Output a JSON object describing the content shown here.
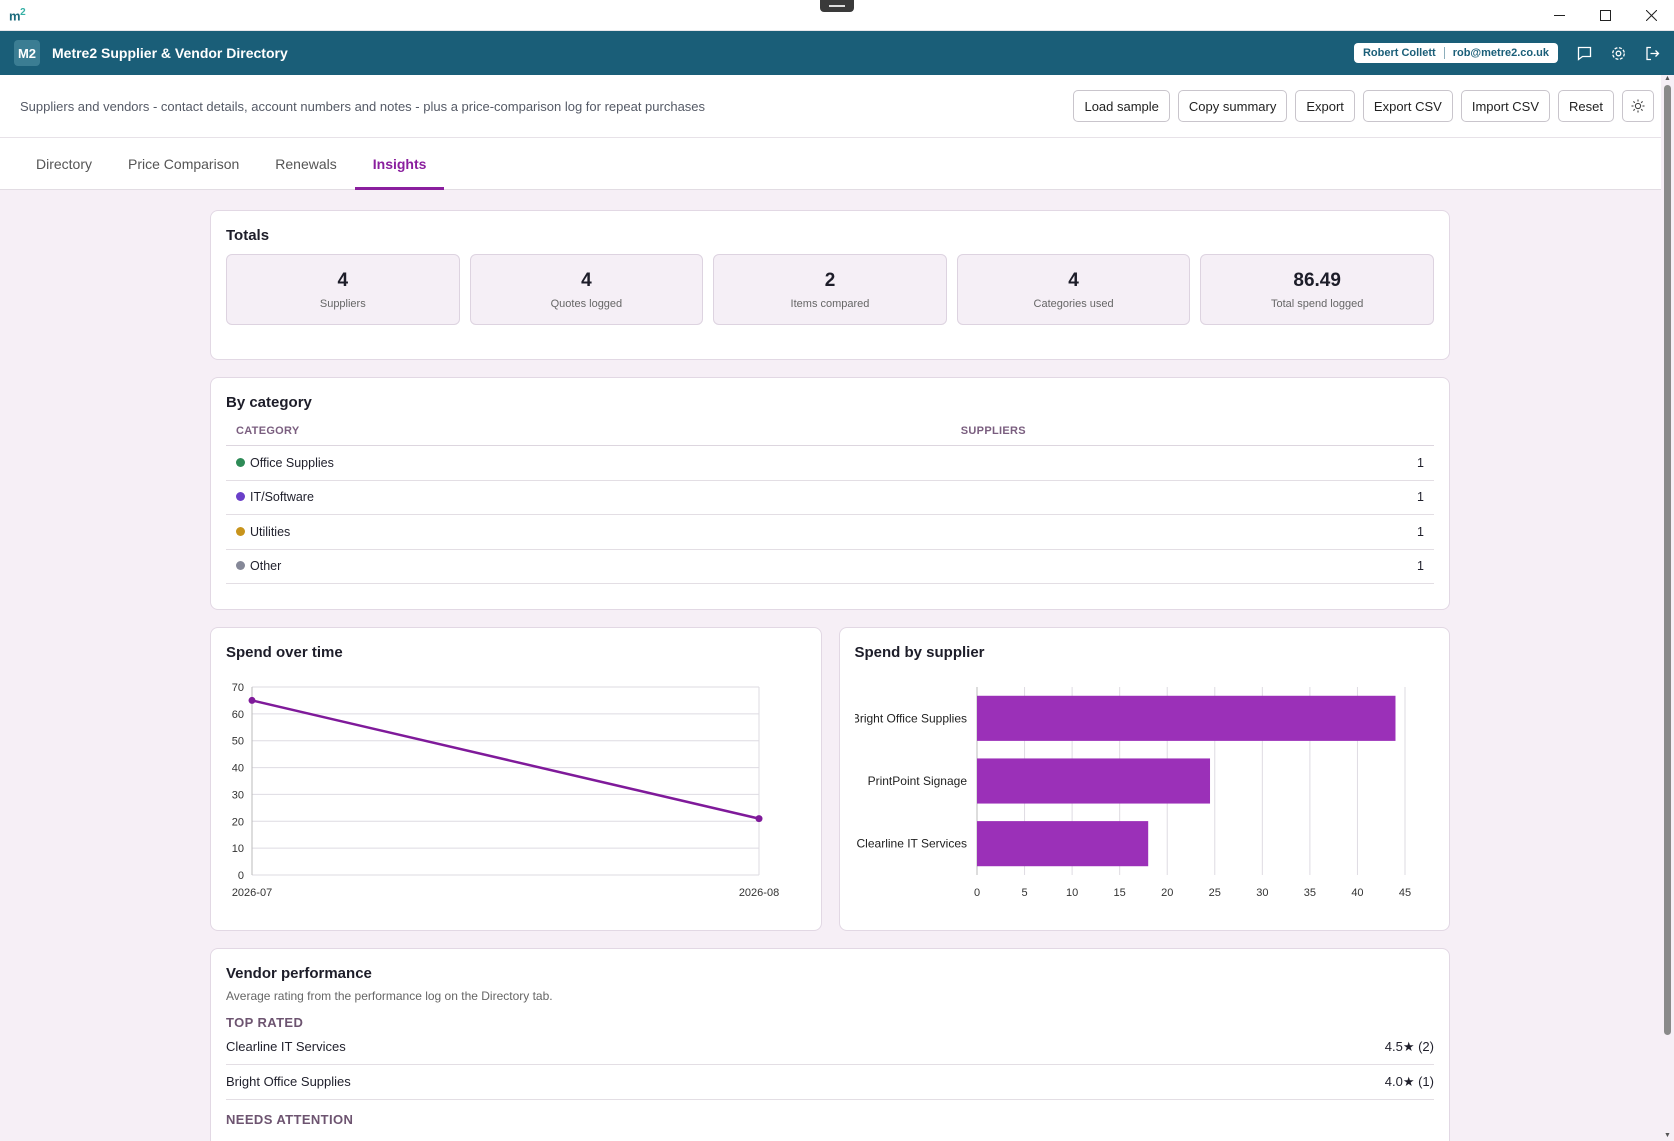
{
  "os": {
    "logo": "m2"
  },
  "header": {
    "logo": "M2",
    "title": "Metre2 Supplier & Vendor Directory",
    "user_name": "Robert Collett",
    "user_email": "rob@metre2.co.uk"
  },
  "subbar": {
    "description": "Suppliers and vendors - contact details, account numbers and notes - plus a price-comparison log for repeat purchases",
    "buttons": [
      "Load sample",
      "Copy summary",
      "Export",
      "Export CSV",
      "Import CSV",
      "Reset"
    ]
  },
  "tabs": [
    "Directory",
    "Price Comparison",
    "Renewals",
    "Insights"
  ],
  "active_tab": "Insights",
  "totals": {
    "title": "Totals",
    "stats": [
      {
        "value": "4",
        "label": "Suppliers"
      },
      {
        "value": "4",
        "label": "Quotes logged"
      },
      {
        "value": "2",
        "label": "Items compared"
      },
      {
        "value": "4",
        "label": "Categories used"
      },
      {
        "value": "86.49",
        "label": "Total spend logged"
      }
    ]
  },
  "by_category": {
    "title": "By category",
    "headers": [
      "CATEGORY",
      "SUPPLIERS"
    ],
    "rows": [
      {
        "name": "Office Supplies",
        "count": "1",
        "color": "#2e8b57"
      },
      {
        "name": "IT/Software",
        "count": "1",
        "color": "#6a3fc9"
      },
      {
        "name": "Utilities",
        "count": "1",
        "color": "#c8941c"
      },
      {
        "name": "Other",
        "count": "1",
        "color": "#858898"
      }
    ]
  },
  "spend_over_time": {
    "title": "Spend over time",
    "chart_data": {
      "type": "line",
      "x": [
        "2026-07",
        "2026-08"
      ],
      "series": [
        {
          "values": [
            65,
            21
          ]
        }
      ],
      "ylim": [
        0,
        70
      ],
      "yticks": [
        0,
        10,
        20,
        30,
        40,
        50,
        60,
        70
      ],
      "color": "#7f1a9a"
    }
  },
  "spend_by_supplier": {
    "title": "Spend by supplier",
    "chart_data": {
      "type": "bar",
      "orientation": "horizontal",
      "categories": [
        "Bright Office Supplies",
        "PrintPoint Signage",
        "Clearline IT Services"
      ],
      "values": [
        44,
        24.5,
        18
      ],
      "xlim": [
        0,
        45
      ],
      "xticks": [
        0,
        5,
        10,
        15,
        20,
        25,
        30,
        35,
        40,
        45
      ],
      "color": "#9b30b8"
    }
  },
  "vendor_performance": {
    "title": "Vendor performance",
    "subtitle": "Average rating from the performance log on the Directory tab.",
    "top_rated_label": "TOP RATED",
    "top_rated": [
      {
        "name": "Clearline IT Services",
        "rating": "4.5★ (2)"
      },
      {
        "name": "Bright Office Supplies",
        "rating": "4.0★ (1)"
      }
    ],
    "needs_attention_label": "NEEDS ATTENTION"
  }
}
